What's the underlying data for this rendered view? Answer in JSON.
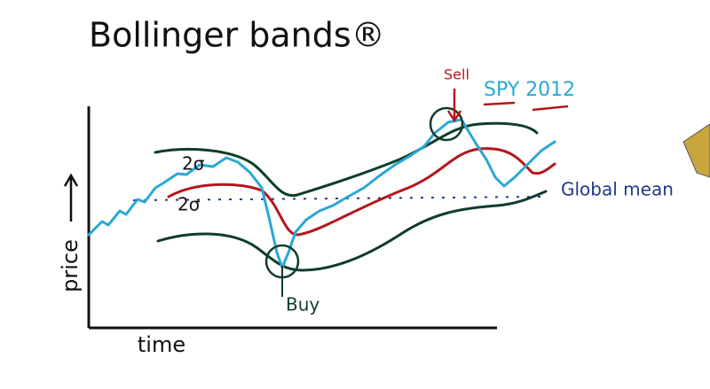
{
  "title": "Bollinger bands®",
  "labels": {
    "upper_sigma": "2σ",
    "lower_sigma": "2σ",
    "sell": "Sell",
    "series": "SPY 2012",
    "mean": "Global mean",
    "buy": "Buy"
  },
  "axes": {
    "y": "price",
    "x": "time"
  }
}
